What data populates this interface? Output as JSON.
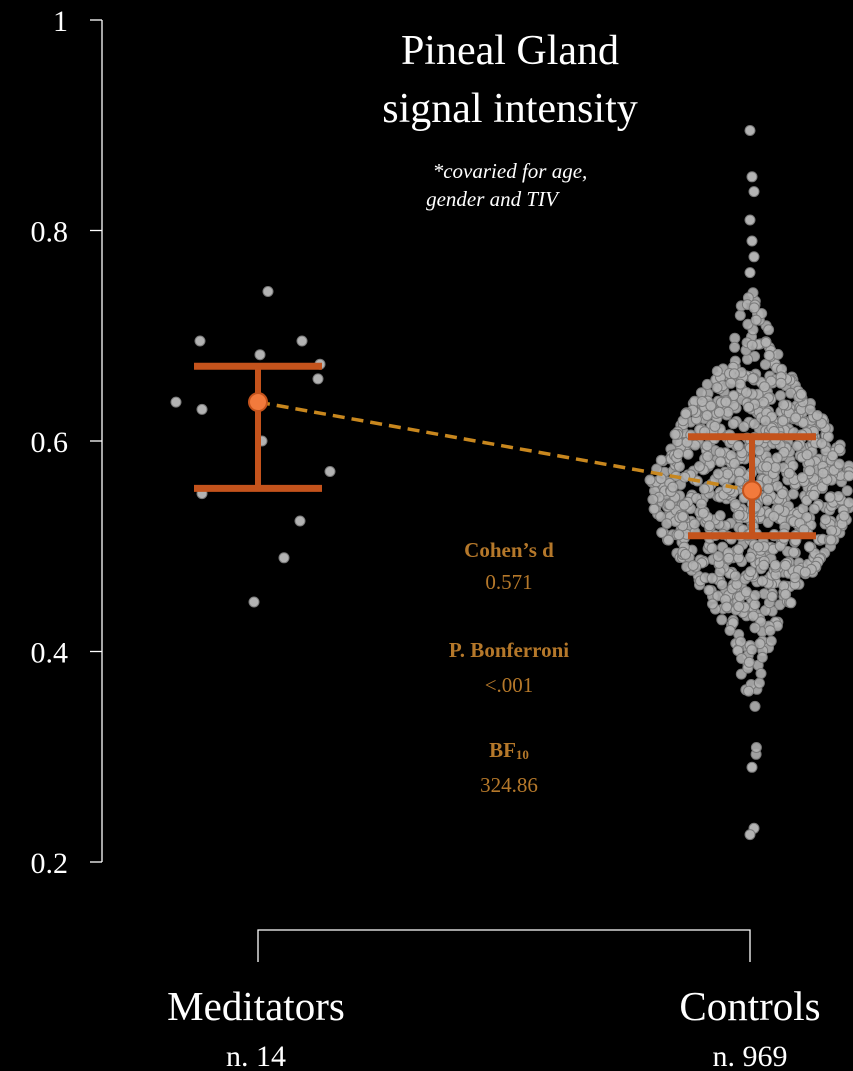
{
  "chart_data": {
    "type": "scatter",
    "title": "Pineal Gland",
    "subtitle": "signal intensity",
    "note_line1": "*covaried for age,",
    "note_line2": "gender and TIV",
    "ylim": [
      0.2,
      1.0
    ],
    "yticks": [
      {
        "value": 0.2,
        "label": "0.2"
      },
      {
        "value": 0.4,
        "label": "0.4"
      },
      {
        "value": 0.6,
        "label": "0.6"
      },
      {
        "value": 0.8,
        "label": "0.8"
      },
      {
        "value": 1.0,
        "label": "1"
      }
    ],
    "groups": [
      {
        "name": "Meditators",
        "n_label": "n. 14",
        "mean": 0.637,
        "ci": [
          0.555,
          0.671
        ],
        "points": [
          0.742,
          0.695,
          0.695,
          0.682,
          0.673,
          0.659,
          0.637,
          0.63,
          0.6,
          0.571,
          0.55,
          0.524,
          0.489,
          0.447
        ]
      },
      {
        "name": "Controls",
        "n_label": "n. 969",
        "mean": 0.553,
        "ci": [
          0.51,
          0.604
        ],
        "distribution": {
          "center": 0.553,
          "sd": 0.072,
          "min": 0.226,
          "max": 0.895
        },
        "outliers": [
          0.895,
          0.851,
          0.837,
          0.81,
          0.79,
          0.775,
          0.76,
          0.29,
          0.232,
          0.226
        ]
      }
    ],
    "stats": {
      "cohens_d_label": "Cohen’s d",
      "cohens_d_value": "0.571",
      "p_label": "P. Bonferroni",
      "p_value": "<.001",
      "bf_label": "BF",
      "bf_sub": "10",
      "bf_value": "324.86"
    },
    "colors": {
      "background": "#000000",
      "text": "#ffffff",
      "axis": "#ffffff",
      "errorbar": "#c4531c",
      "mean_marker": "#f27a3c",
      "connector": "#c8871e",
      "stats_text": "#b5782a",
      "points_fill": "#b3b3b3",
      "points_stroke": "#7a7a7a"
    }
  }
}
